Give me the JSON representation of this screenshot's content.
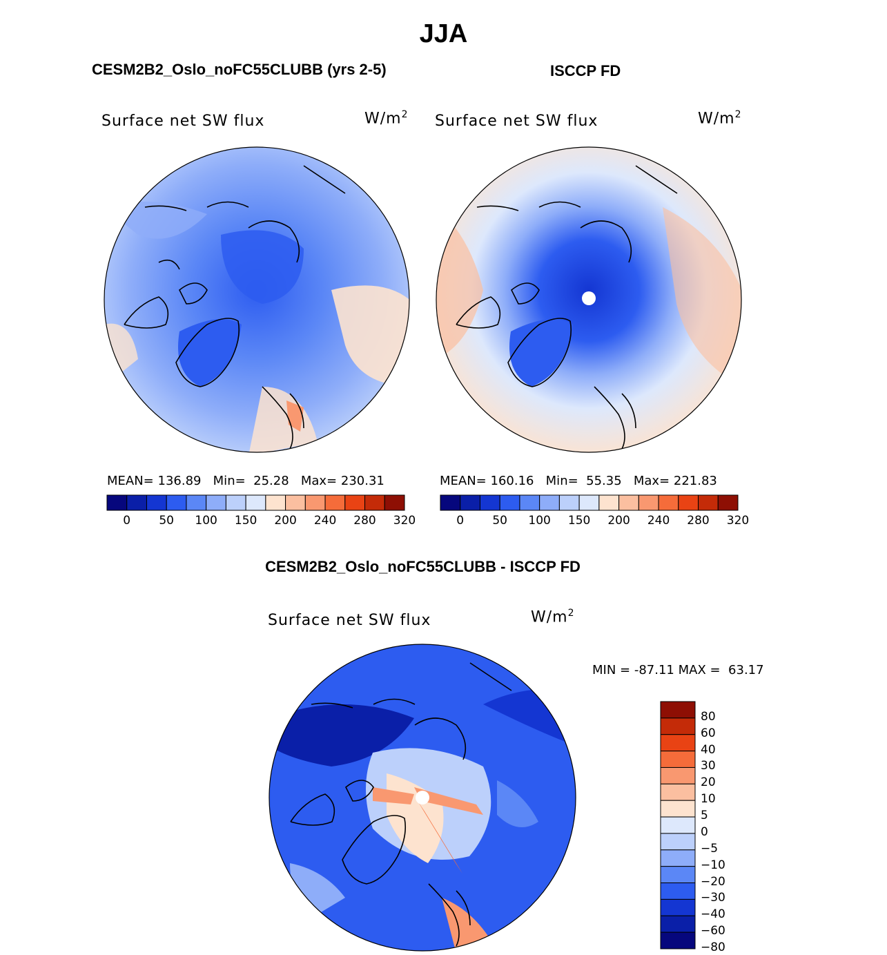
{
  "title": "JJA",
  "left_panel": {
    "title": "CESM2B2_Oslo_noFC55CLUBB (yrs 2-5)",
    "label": "Surface net SW flux",
    "units": "W/m",
    "units_exp": "2",
    "mean_label": "MEAN=",
    "mean": "136.89",
    "min_label": "Min=",
    "min": "25.28",
    "max_label": "Max=",
    "max": "230.31"
  },
  "right_panel": {
    "title": "ISCCP FD",
    "label": "Surface net SW flux",
    "units": "W/m",
    "units_exp": "2",
    "mean_label": "MEAN=",
    "mean": "160.16",
    "min_label": "Min=",
    "min": "55.35",
    "max_label": "Max=",
    "max": "221.83"
  },
  "diff_panel": {
    "title": "CESM2B2_Oslo_noFC55CLUBB - ISCCP FD",
    "label": "Surface net SW flux",
    "units": "W/m",
    "units_exp": "2",
    "min_label": "MIN =",
    "min": "-87.11",
    "max_label": "MAX =",
    "max": "63.17"
  },
  "abs_colorbar": {
    "colors": [
      "#06077d",
      "#0a1fa8",
      "#1436d2",
      "#2d5cf0",
      "#5b87f6",
      "#8eadf9",
      "#bcd0fb",
      "#dde8fc",
      "#fde3cf",
      "#fbbfa0",
      "#f99870",
      "#f56c3a",
      "#e94314",
      "#c42b08",
      "#8e0f04"
    ],
    "ticks": [
      "0",
      "50",
      "100",
      "150",
      "200",
      "240",
      "280",
      "320"
    ]
  },
  "diff_colorbar": {
    "colors_top_to_bottom": [
      "#8e0f04",
      "#c42b08",
      "#e94314",
      "#f56c3a",
      "#f99870",
      "#fbbfa0",
      "#fde3cf",
      "#dde8fc",
      "#bcd0fb",
      "#8eadf9",
      "#5b87f6",
      "#2d5cf0",
      "#1436d2",
      "#0a1fa8",
      "#06077d"
    ],
    "ticks": [
      "80",
      "60",
      "40",
      "30",
      "20",
      "10",
      "5",
      "0",
      "−5",
      "−10",
      "−20",
      "−30",
      "−40",
      "−60",
      "−80"
    ]
  }
}
